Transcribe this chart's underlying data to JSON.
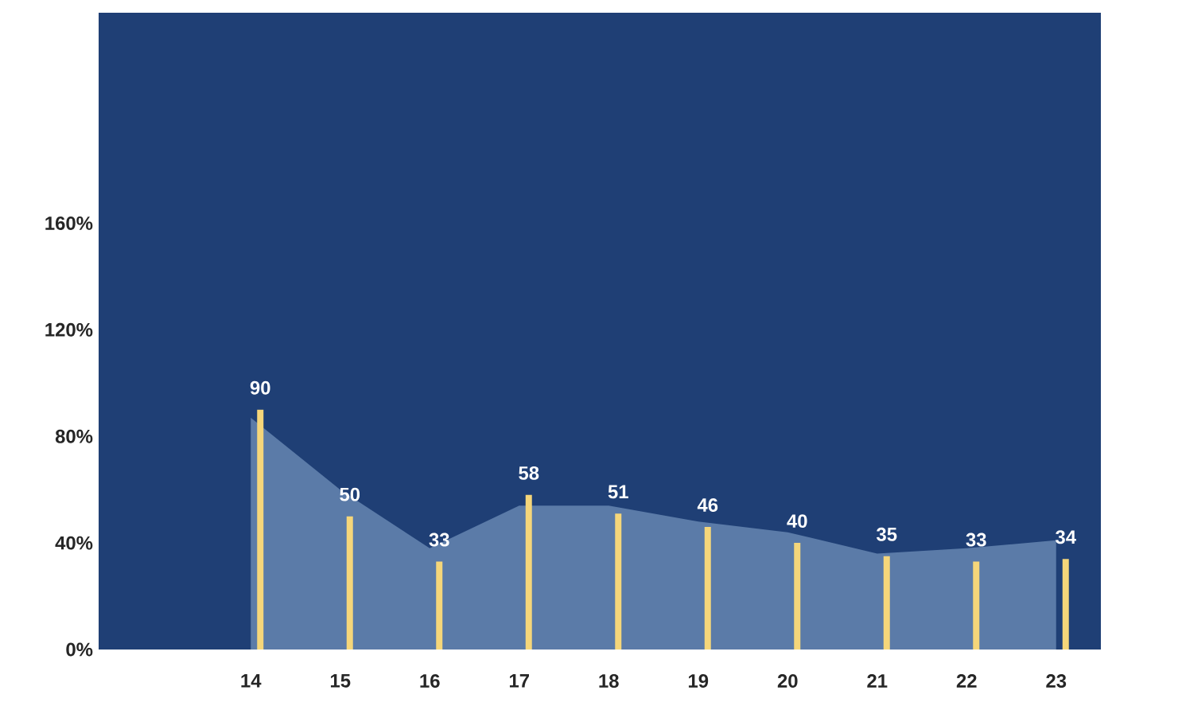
{
  "chart_data": {
    "type": "bar",
    "categories": [
      "14",
      "15",
      "16",
      "17",
      "18",
      "19",
      "20",
      "21",
      "22",
      "23"
    ],
    "series": [
      {
        "type": "area",
        "color": "#5b7ba8",
        "values": [
          87,
          60,
          38,
          54,
          54,
          48,
          44,
          36,
          38,
          41
        ]
      },
      {
        "color": "#f5d67a",
        "values": [
          90,
          50,
          33,
          58,
          51,
          46,
          40,
          35,
          33,
          34
        ],
        "value_labels": [
          "90",
          "50",
          "33",
          "58",
          "51",
          "46",
          "40",
          "35",
          "33",
          "34"
        ]
      }
    ],
    "ylim": [
      0,
      239
    ],
    "yticks": [
      {
        "value": 0,
        "label": "0%"
      },
      {
        "value": 40,
        "label": "40%"
      },
      {
        "value": 80,
        "label": "80%"
      },
      {
        "value": 120,
        "label": "120%"
      },
      {
        "value": 160,
        "label": "160%"
      }
    ]
  }
}
